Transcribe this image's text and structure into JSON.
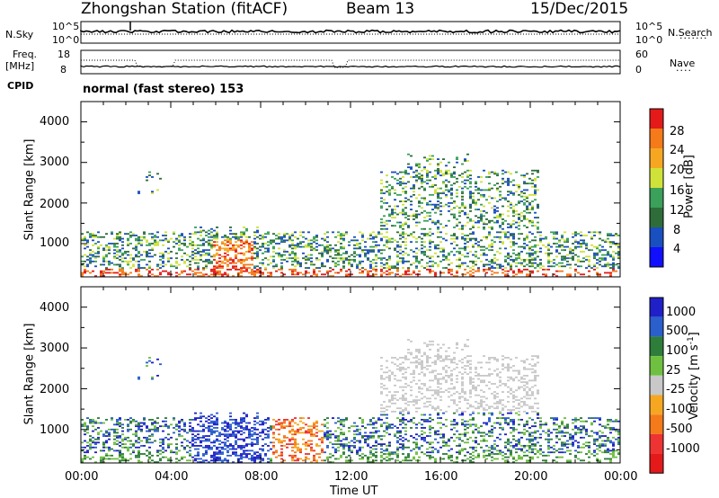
{
  "header": {
    "station": "Zhongshan Station (fitACF)",
    "beam": "Beam 13",
    "date": "15/Dec/2015"
  },
  "summary_panel": {
    "nsky_label": "N.Sky",
    "nsky_ticks": [
      "10^5",
      "10^0"
    ],
    "nsearch_label": "N.Search",
    "nsearch_ticks": [
      "10^5",
      "10^0"
    ],
    "freq_label": "Freq.",
    "freq_unit": "[MHz]",
    "freq_ticks": [
      "18",
      "8"
    ],
    "nave_label": "Nave",
    "nave_ticks": [
      "60",
      "0"
    ],
    "cpid_label": "CPID",
    "cpid_value": "normal (fast stereo) 153"
  },
  "colors": {
    "power_scale": [
      "#1010ff",
      "#1a4fc0",
      "#2e6d3a",
      "#3aa05a",
      "#cfe23a",
      "#f6a722",
      "#f47a1a",
      "#e41a1a"
    ],
    "velocity_scale": [
      "#2020c8",
      "#2a5fcc",
      "#2e7d3a",
      "#6fc040",
      "#c8c8c8",
      "#f6a722",
      "#f47a1a",
      "#ee3333",
      "#e41a1a"
    ]
  },
  "chart_data": [
    {
      "type": "heatmap",
      "panel": "power",
      "ylabel": "Slant Range [km]",
      "xlabel": "",
      "x_ticks": [
        "00:00",
        "04:00",
        "08:00",
        "12:00",
        "16:00",
        "20:00",
        "00:00"
      ],
      "y_ticks": [
        "1000",
        "2000",
        "3000",
        "4000"
      ],
      "ylim": [
        180,
        4500
      ],
      "colorbar": {
        "label": "Power [dB]",
        "ticks": [
          "4",
          "8",
          "12",
          "16",
          "20",
          "24",
          "28"
        ],
        "range": [
          0,
          30
        ]
      }
    },
    {
      "type": "heatmap",
      "panel": "velocity",
      "ylabel": "Slant Range [km]",
      "xlabel": "Time UT",
      "x_ticks": [
        "00:00",
        "04:00",
        "08:00",
        "12:00",
        "16:00",
        "20:00",
        "00:00"
      ],
      "y_ticks": [
        "1000",
        "2000",
        "3000",
        "4000"
      ],
      "ylim": [
        180,
        4500
      ],
      "colorbar": {
        "label": "Velocity [m s",
        "label_superscript": "-1",
        "label_close": "]",
        "ticks": [
          "1000",
          "500",
          "100",
          "25",
          "-25",
          "-100",
          "-500",
          "-1000"
        ]
      }
    }
  ]
}
